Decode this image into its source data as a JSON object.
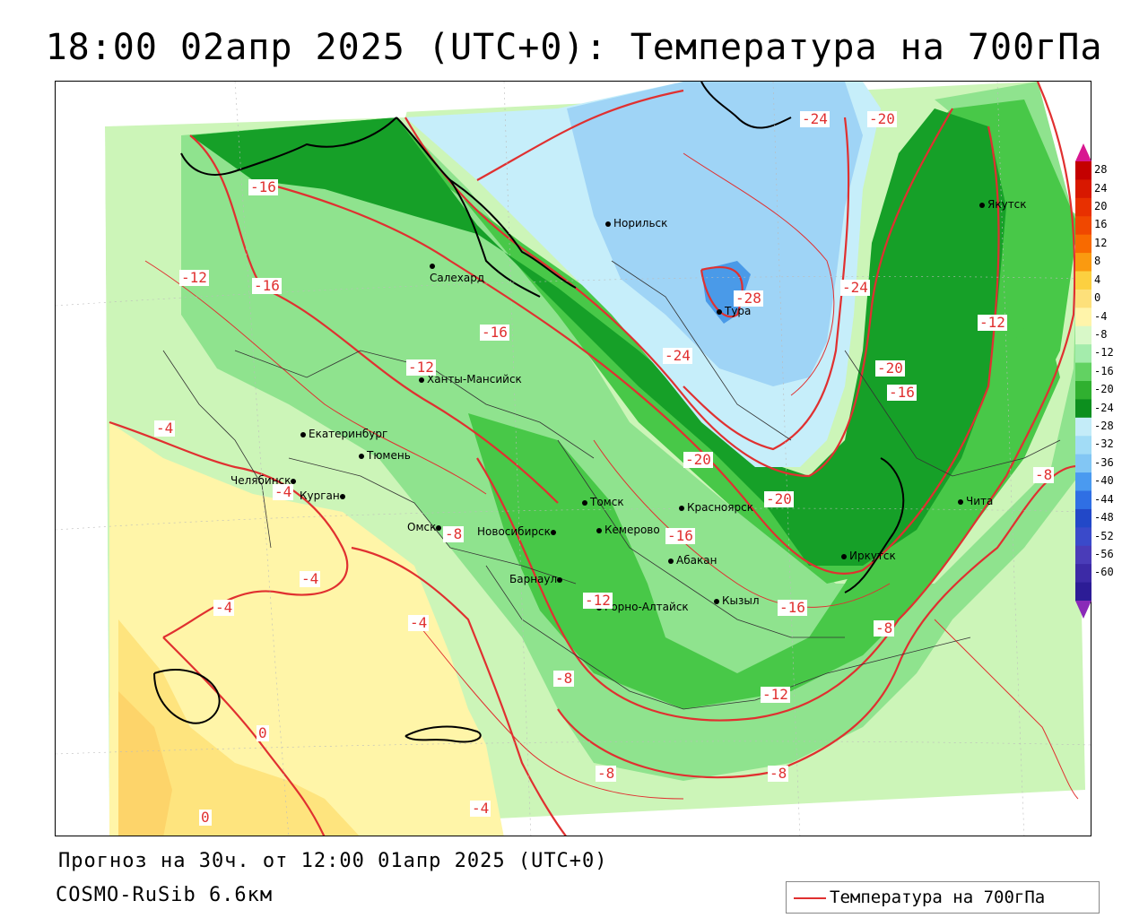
{
  "header": {
    "title": "18:00 02апр 2025 (UTC+0): Температура на 700гПа"
  },
  "footer": {
    "forecast": "Прогноз на 30ч. от 12:00 01апр 2025 (UTC+0)",
    "model": "COSMO-RuSib 6.6км"
  },
  "legend": {
    "label": "Температура на 700гПа",
    "color": "#e03030"
  },
  "cities": [
    {
      "name": "Норильск"
    },
    {
      "name": "Салехард"
    },
    {
      "name": "Тура"
    },
    {
      "name": "Якутск"
    },
    {
      "name": "Ханты-Мансийск"
    },
    {
      "name": "Екатеринбург"
    },
    {
      "name": "Тюмень"
    },
    {
      "name": "Челябинск"
    },
    {
      "name": "Курган"
    },
    {
      "name": "Омск"
    },
    {
      "name": "Новосибирск"
    },
    {
      "name": "Томск"
    },
    {
      "name": "Кемерово"
    },
    {
      "name": "Красноярск"
    },
    {
      "name": "Абакан"
    },
    {
      "name": "Барнаул"
    },
    {
      "name": "Горно-Алтайск"
    },
    {
      "name": "Кызыл"
    },
    {
      "name": "Иркутск"
    },
    {
      "name": "Чита"
    }
  ],
  "contour_labels": [
    "-24",
    "-20",
    "-16",
    "-12",
    "-16",
    "-28",
    "-24",
    "-24",
    "-16",
    "-12",
    "-20",
    "-16",
    "-12",
    "-4",
    "-20",
    "-4",
    "-8",
    "-20",
    "-16",
    "-8",
    "-4",
    "-4",
    "-4",
    "-16",
    "-12",
    "-8",
    "-8",
    "-12",
    "0",
    "-8",
    "-8",
    "-4",
    "0"
  ],
  "colorbar": {
    "ticks": [
      "28",
      "24",
      "20",
      "16",
      "12",
      "8",
      "4",
      "0",
      "-4",
      "-8",
      "-12",
      "-16",
      "-20",
      "-24",
      "-28",
      "-32",
      "-36",
      "-40",
      "-44",
      "-48",
      "-52",
      "-56",
      "-60"
    ],
    "colors": [
      "#c40000",
      "#d81800",
      "#e83000",
      "#f04800",
      "#f86a00",
      "#fa9a10",
      "#fcd040",
      "#fde07a",
      "#fff4aa",
      "#d8f8c8",
      "#a4ecac",
      "#62d262",
      "#30b030",
      "#0c8f1e",
      "#c4ecf8",
      "#a2dcf6",
      "#82c6f4",
      "#4a9af0",
      "#2f6fe4",
      "#2248c8",
      "#3a4aca",
      "#4a3cb8",
      "#3c2aa6",
      "#2c1c96"
    ]
  },
  "colors": {
    "yellow_light": "#fff5a8",
    "yellow": "#fee47e",
    "yellow_dark": "#fdd46a",
    "green_pale": "#ccf5b8",
    "green_light": "#8fe38e",
    "green_mid": "#48c848",
    "green_dark": "#16a028",
    "cyan_light": "#c6eefa",
    "blue_light": "#9fd4f6",
    "blue_mid": "#4a9ae8",
    "contour": "#e03030"
  }
}
